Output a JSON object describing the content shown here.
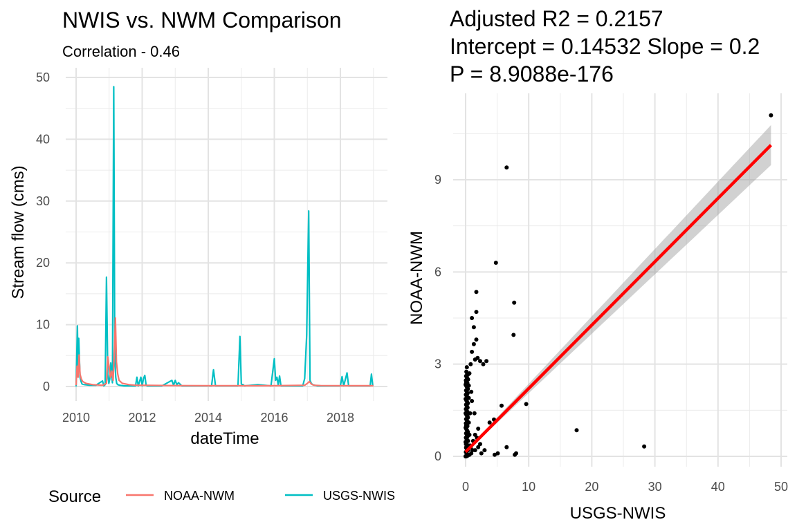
{
  "chart_data": [
    {
      "type": "line",
      "title": "NWIS vs. NWM Comparison",
      "subtitle": "Correlation - 0.46",
      "xlabel": "dateTime",
      "ylabel": "Stream flow (cms)",
      "xlim": [
        2010,
        2019
      ],
      "ylim": [
        0,
        50
      ],
      "xticks": [
        2010,
        2012,
        2014,
        2016,
        2018
      ],
      "xtick_labels": [
        "2010",
        "2012",
        "2014",
        "2016",
        "2018"
      ],
      "yticks": [
        0,
        10,
        20,
        30,
        40,
        50
      ],
      "ytick_labels": [
        "0",
        "10",
        "20",
        "30",
        "40",
        "50"
      ],
      "grid": true,
      "legend": {
        "title": "Source",
        "position": "bottom",
        "entries": [
          {
            "label": "NOAA-NWM",
            "color": "#F8766D"
          },
          {
            "label": "USGS-NWIS",
            "color": "#00BFC4"
          }
        ]
      },
      "series": [
        {
          "name": "USGS-NWIS",
          "color": "#00BFC4",
          "x": [
            2010.0,
            2010.04,
            2010.06,
            2010.08,
            2010.12,
            2010.15,
            2010.18,
            2010.25,
            2010.4,
            2010.6,
            2010.8,
            2010.84,
            2010.88,
            2010.92,
            2010.96,
            2010.99,
            2011.02,
            2011.05,
            2011.1,
            2011.14,
            2011.17,
            2011.2,
            2011.23,
            2011.26,
            2011.32,
            2011.45,
            2011.6,
            2011.8,
            2011.84,
            2011.88,
            2011.96,
            2012.0,
            2012.04,
            2012.08,
            2012.12,
            2012.15,
            2012.2,
            2012.6,
            2012.9,
            2012.95,
            2013.0,
            2013.05,
            2013.1,
            2013.2,
            2013.6,
            2014.1,
            2014.16,
            2014.22,
            2014.6,
            2014.9,
            2014.96,
            2015.0,
            2015.05,
            2015.1,
            2015.5,
            2015.9,
            2016.0,
            2016.04,
            2016.08,
            2016.12,
            2016.16,
            2016.2,
            2016.6,
            2016.86,
            2016.92,
            2016.98,
            2017.04,
            2017.08,
            2017.12,
            2017.16,
            2017.22,
            2017.3,
            2017.7,
            2018.0,
            2018.05,
            2018.1,
            2018.2,
            2018.25,
            2018.3,
            2018.8,
            2018.9,
            2018.94,
            2018.98
          ],
          "y": [
            0.0,
            9.8,
            2.0,
            7.8,
            1.5,
            0.8,
            0.4,
            0.3,
            0.2,
            0.2,
            0.9,
            0.1,
            0.3,
            17.7,
            2.0,
            0.5,
            1.2,
            3.8,
            0.6,
            48.5,
            5.0,
            1.5,
            0.5,
            0.3,
            0.2,
            0.1,
            0.1,
            0.1,
            1.5,
            0.1,
            1.5,
            0.1,
            1.3,
            1.8,
            0.2,
            0.1,
            0.1,
            0.1,
            1.0,
            0.2,
            1.0,
            0.3,
            0.6,
            0.1,
            0.1,
            0.1,
            2.7,
            0.1,
            0.1,
            0.1,
            8.1,
            0.4,
            0.3,
            0.1,
            0.3,
            0.1,
            4.5,
            1.0,
            1.5,
            0.2,
            1.7,
            0.1,
            0.1,
            0.1,
            1.3,
            8.4,
            28.4,
            1.0,
            0.5,
            0.3,
            0.2,
            0.1,
            0.1,
            0.1,
            1.6,
            0.1,
            2.2,
            0.1,
            0.1,
            0.1,
            0.1,
            2.0,
            0.1
          ]
        },
        {
          "name": "NOAA-NWM",
          "color": "#F8766D",
          "x": [
            2010.0,
            2010.03,
            2010.06,
            2010.09,
            2010.12,
            2010.16,
            2010.2,
            2010.3,
            2010.5,
            2010.8,
            2010.92,
            2010.96,
            2011.0,
            2011.04,
            2011.08,
            2011.12,
            2011.16,
            2011.19,
            2011.22,
            2011.26,
            2011.3,
            2011.4,
            2011.6,
            2011.8,
            2012.0,
            2013.0,
            2014.0,
            2015.0,
            2016.0,
            2016.92,
            2017.0,
            2017.06,
            2017.12,
            2017.2,
            2017.4,
            2018.0,
            2019.0
          ],
          "y": [
            0.2,
            3.3,
            1.5,
            5.1,
            2.0,
            1.2,
            0.8,
            0.5,
            0.3,
            0.2,
            0.5,
            4.8,
            3.0,
            1.5,
            2.5,
            1.0,
            6.0,
            11.1,
            4.0,
            2.0,
            1.0,
            0.5,
            0.3,
            0.2,
            0.2,
            0.15,
            0.12,
            0.12,
            0.12,
            0.2,
            0.5,
            0.8,
            0.4,
            0.2,
            0.15,
            0.12,
            0.12
          ]
        }
      ]
    },
    {
      "type": "scatter",
      "title_lines": [
        "Adjusted R2 =  0.2157",
        "Intercept = 0.14532  Slope = 0.2",
        "P = 8.9088e-176"
      ],
      "xlabel": "USGS-NWIS",
      "ylabel": "NOAA-NWM",
      "xlim": [
        -1.5,
        50.5
      ],
      "ylim": [
        -0.25,
        11.4
      ],
      "xticks": [
        0,
        10,
        20,
        30,
        40,
        50
      ],
      "xtick_labels": [
        "0",
        "10",
        "20",
        "30",
        "40",
        "50"
      ],
      "yticks": [
        0,
        3,
        6,
        9
      ],
      "ytick_labels": [
        "0",
        "3",
        "6",
        "9"
      ],
      "grid": true,
      "points_color": "#000000",
      "points": [
        [
          48.4,
          11.1
        ],
        [
          6.5,
          9.4
        ],
        [
          4.8,
          6.3
        ],
        [
          1.7,
          5.35
        ],
        [
          7.7,
          5.0
        ],
        [
          1.7,
          4.7
        ],
        [
          1.0,
          4.5
        ],
        [
          1.3,
          4.2
        ],
        [
          7.6,
          3.95
        ],
        [
          1.7,
          3.8
        ],
        [
          1.3,
          3.65
        ],
        [
          1.0,
          3.4
        ],
        [
          2.3,
          3.1
        ],
        [
          3.3,
          3.1
        ],
        [
          1.5,
          3.15
        ],
        [
          1.9,
          3.2
        ],
        [
          2.8,
          3.0
        ],
        [
          0.8,
          3.0
        ],
        [
          0.6,
          2.7
        ],
        [
          0.4,
          2.5
        ],
        [
          0.3,
          2.2
        ],
        [
          0.5,
          1.9
        ],
        [
          1.0,
          1.8
        ],
        [
          0.2,
          1.6
        ],
        [
          5.7,
          1.65
        ],
        [
          9.6,
          1.7
        ],
        [
          4.5,
          1.2
        ],
        [
          3.8,
          1.1
        ],
        [
          2.0,
          0.9
        ],
        [
          1.5,
          0.7
        ],
        [
          1.2,
          0.5
        ],
        [
          0.8,
          0.3
        ],
        [
          17.6,
          0.85
        ],
        [
          28.3,
          0.32
        ],
        [
          6.5,
          0.3
        ],
        [
          8.0,
          0.1
        ],
        [
          7.8,
          0.05
        ],
        [
          5.1,
          0.1
        ],
        [
          4.6,
          0.05
        ],
        [
          3.0,
          0.2
        ],
        [
          2.5,
          0.1
        ],
        [
          2.0,
          0.3
        ],
        [
          1.5,
          0.2
        ],
        [
          0.9,
          0.1
        ],
        [
          0.6,
          0.05
        ],
        [
          0.3,
          0.02
        ],
        [
          0.1,
          0.0
        ],
        [
          0.0,
          0.0
        ],
        [
          0.1,
          0.3
        ],
        [
          0.2,
          0.6
        ],
        [
          0.1,
          0.9
        ],
        [
          0.3,
          1.3
        ],
        [
          0.2,
          2.0
        ],
        [
          0.1,
          1.0
        ],
        [
          0.4,
          0.5
        ],
        [
          0.5,
          1.1
        ],
        [
          0.7,
          1.4
        ],
        [
          0.2,
          2.9
        ],
        [
          0.1,
          2.4
        ],
        [
          0.3,
          0.8
        ],
        [
          1.8,
          0.6
        ],
        [
          2.3,
          0.4
        ],
        [
          1.1,
          0.2
        ],
        [
          0.6,
          0.7
        ],
        [
          0.05,
          0.4
        ],
        [
          0.15,
          0.15
        ],
        [
          0.25,
          1.7
        ],
        [
          0.4,
          0.2
        ],
        [
          0.5,
          2.3
        ],
        [
          0.7,
          0.35
        ],
        [
          0.9,
          2.1
        ],
        [
          1.4,
          1.4
        ]
      ],
      "regression": {
        "x": [
          0,
          48.4
        ],
        "y": [
          0.14532,
          10.13
        ],
        "color": "#FF0000",
        "ci_low_end": 9.5,
        "ci_high_end": 10.8
      }
    }
  ]
}
